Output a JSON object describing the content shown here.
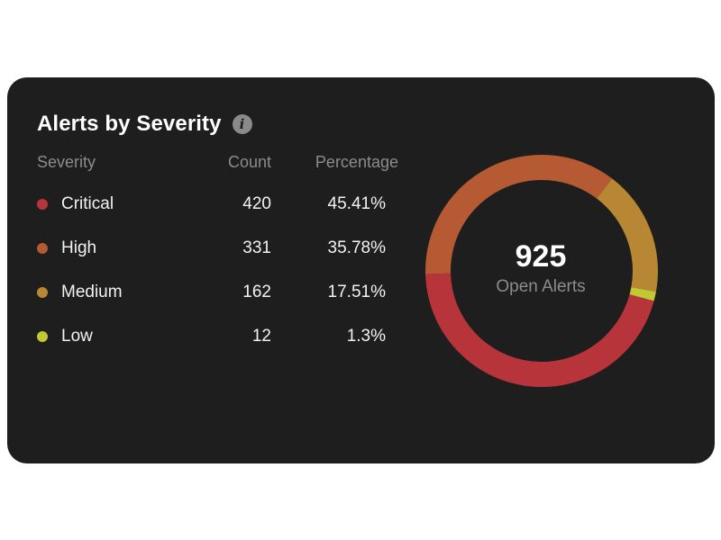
{
  "widget": {
    "title": "Alerts by Severity",
    "info_icon": "info-icon",
    "columns": {
      "severity": "Severity",
      "count": "Count",
      "percentage": "Percentage"
    },
    "rows": [
      {
        "label": "Critical",
        "count": "420",
        "percentage": "45.41%",
        "color": "#b7353a"
      },
      {
        "label": "High",
        "count": "331",
        "percentage": "35.78%",
        "color": "#b55a32"
      },
      {
        "label": "Medium",
        "count": "162",
        "percentage": "17.51%",
        "color": "#b88733"
      },
      {
        "label": "Low",
        "count": "12",
        "percentage": "1.3%",
        "color": "#c2c833"
      }
    ],
    "total": "925",
    "total_label": "Open Alerts"
  },
  "chart_data": {
    "type": "pie",
    "categories": [
      "Critical",
      "High",
      "Medium",
      "Low"
    ],
    "values": [
      420,
      331,
      162,
      12
    ],
    "colors": [
      "#b7353a",
      "#b55a32",
      "#b88733",
      "#c2c833"
    ],
    "total": 925,
    "donut": true
  }
}
